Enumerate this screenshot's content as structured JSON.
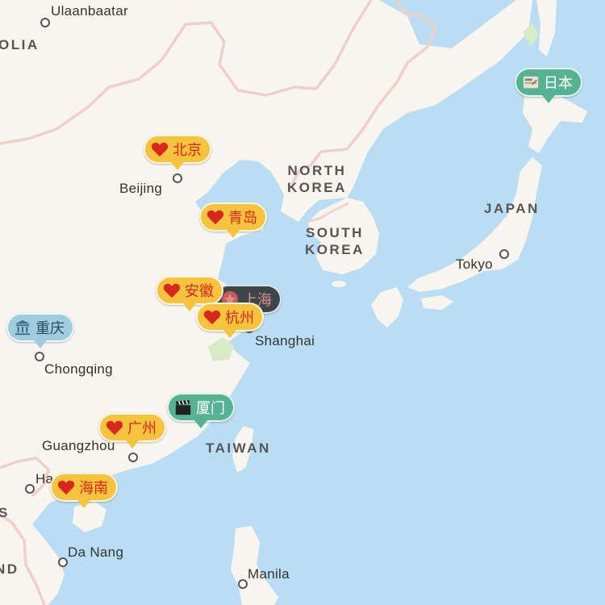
{
  "colors": {
    "water": "#b9def3",
    "land": "#f8f4ee",
    "park": "#d7ecc6",
    "border": "#f0cfcb",
    "pin_love": "#f6c33c",
    "pin_love_text": "#d9261f",
    "pin_teal": "#55b393",
    "pin_grey": "#9fcde0",
    "pin_dark": "#3d4649"
  },
  "cities": [
    {
      "id": "ulaanbaatar",
      "name": "Ulaanbaatar"
    },
    {
      "id": "beijing",
      "name": "Beijing"
    },
    {
      "id": "shanghai",
      "name": "Shanghai"
    },
    {
      "id": "chongqing",
      "name": "Chongqing"
    },
    {
      "id": "guangzhou",
      "name": "Guangzhou"
    },
    {
      "id": "hanoi",
      "name": "Ha"
    },
    {
      "id": "danang",
      "name": "Da Nang"
    },
    {
      "id": "tokyo",
      "name": "Tokyo"
    },
    {
      "id": "manila",
      "name": "Manila"
    }
  ],
  "countries": [
    {
      "id": "mongolia",
      "name": "OLIA"
    },
    {
      "id": "north-korea",
      "name": "NORTH\nKOREA"
    },
    {
      "id": "south-korea",
      "name": "SOUTH\nKOREA"
    },
    {
      "id": "japan",
      "name": "JAPAN"
    },
    {
      "id": "taiwan",
      "name": "TAIWAN"
    },
    {
      "id": "laos",
      "name": "S"
    },
    {
      "id": "thailand",
      "name": "ND"
    }
  ],
  "pins": [
    {
      "id": "beijing",
      "label": "北京",
      "icon": "heart-icon",
      "style": "love"
    },
    {
      "id": "qingdao",
      "label": "青岛",
      "icon": "heart-icon",
      "style": "love"
    },
    {
      "id": "shanghai",
      "label": "上海",
      "icon": "star-icon",
      "style": "dark"
    },
    {
      "id": "anhui",
      "label": "安徽",
      "icon": "heart-icon",
      "style": "love"
    },
    {
      "id": "hangzhou",
      "label": "杭州",
      "icon": "heart-icon",
      "style": "love"
    },
    {
      "id": "chongqing",
      "label": "重庆",
      "icon": "bank-icon",
      "style": "grey"
    },
    {
      "id": "xiamen",
      "label": "厦门",
      "icon": "clapperboard-icon",
      "style": "teal"
    },
    {
      "id": "guangzhou",
      "label": "广州",
      "icon": "heart-icon",
      "style": "love"
    },
    {
      "id": "hainan",
      "label": "海南",
      "icon": "heart-icon",
      "style": "love"
    },
    {
      "id": "japan",
      "label": "日本",
      "icon": "ticket-icon",
      "style": "teal"
    }
  ]
}
